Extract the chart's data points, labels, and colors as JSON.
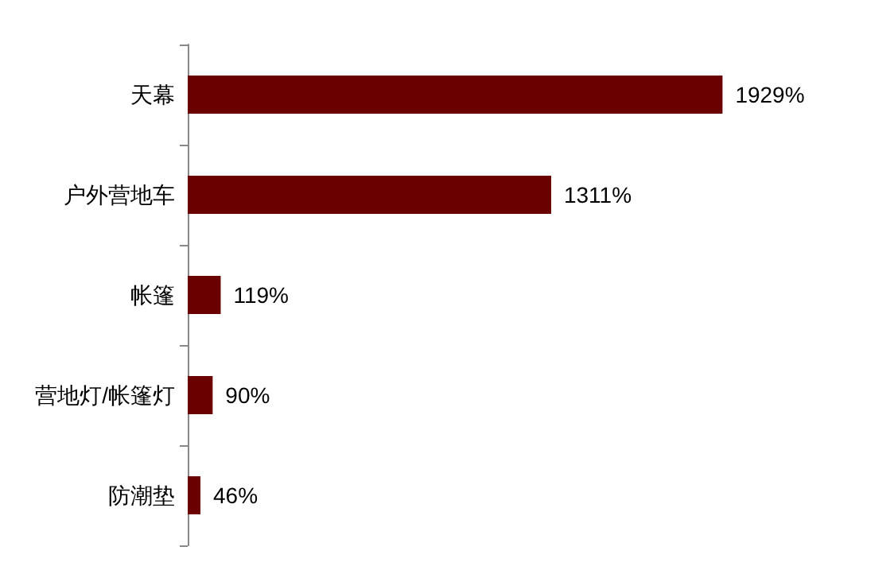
{
  "chart_data": {
    "type": "bar",
    "orientation": "horizontal",
    "categories": [
      "天幕",
      "户外营地车",
      "帐篷",
      "营地灯/帐篷灯",
      "防潮垫"
    ],
    "values": [
      1929,
      1311,
      119,
      90,
      46
    ],
    "value_labels": [
      "1929%",
      "1311%",
      "119%",
      "90%",
      "46%"
    ],
    "color": "#6b0000"
  }
}
